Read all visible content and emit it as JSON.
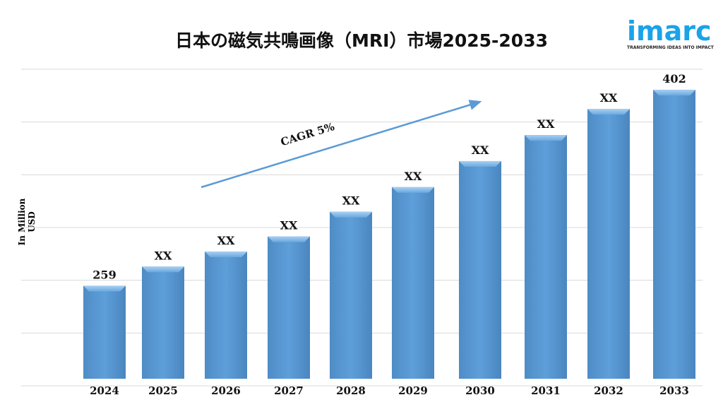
{
  "chart_data": {
    "type": "bar",
    "title": "日本の磁気共鳴画像（MRI）市場2025-2033",
    "ylabel": "In Million USD",
    "xlabel": "",
    "categories": [
      "2024",
      "2025",
      "2026",
      "2027",
      "2028",
      "2029",
      "2030",
      "2031",
      "2032",
      "2033"
    ],
    "values": [
      259,
      273,
      284,
      295,
      313,
      331,
      350,
      369,
      388,
      402
    ],
    "data_labels": [
      "259",
      "XX",
      "XX",
      "XX",
      "XX",
      "XX",
      "XX",
      "XX",
      "XX",
      "402"
    ],
    "ylim": [
      186,
      417
    ],
    "grid": true,
    "bar_color": "#5b9bd5",
    "annotation": "CAGR 5%"
  },
  "logo": {
    "word": "imarc",
    "tagline": "TRANSFORMING IDEAS INTO IMPACT",
    "color": "#1aa3e8"
  }
}
